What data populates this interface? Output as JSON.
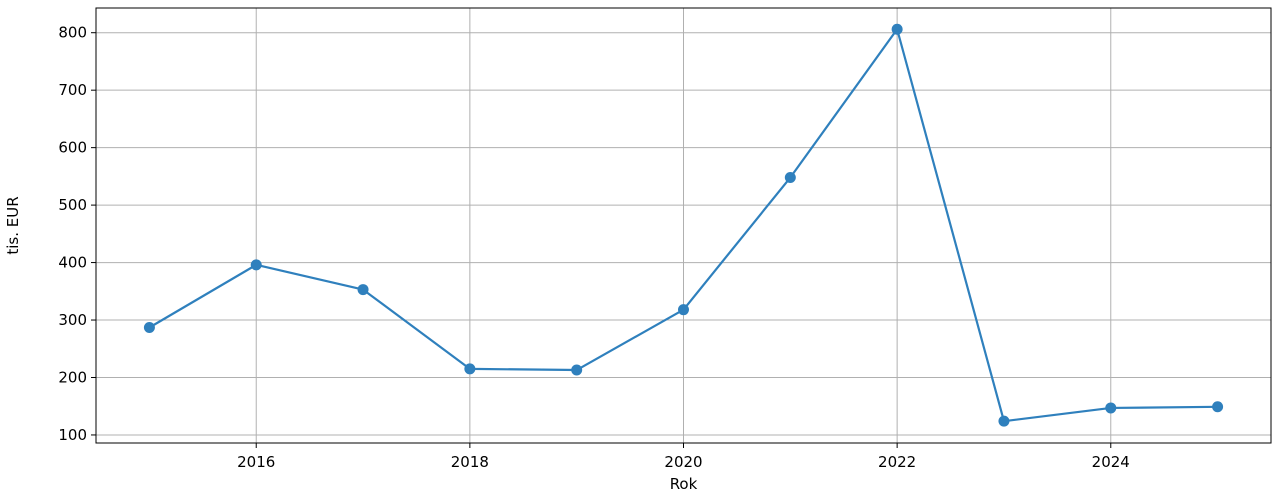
{
  "chart_data": {
    "type": "line",
    "title": "",
    "xlabel": "Rok",
    "ylabel": "tis. EUR",
    "x": [
      2015,
      2016,
      2017,
      2018,
      2019,
      2020,
      2021,
      2022,
      2023,
      2024,
      2025
    ],
    "series": [
      {
        "values": [
          287,
          396,
          353,
          215,
          213,
          318,
          548,
          806,
          124,
          147,
          149
        ],
        "color": "#2f80bd"
      }
    ],
    "xlim": [
      2014.5,
      2025.5
    ],
    "ylim": [
      86,
      843
    ],
    "xticks": [
      2016,
      2018,
      2020,
      2022,
      2024
    ],
    "xtick_labels": [
      "2016",
      "2018",
      "2020",
      "2022",
      "2024"
    ],
    "yticks": [
      100,
      200,
      300,
      400,
      500,
      600,
      700,
      800
    ],
    "ytick_labels": [
      "100",
      "200",
      "300",
      "400",
      "500",
      "600",
      "700",
      "800"
    ],
    "grid": true,
    "legend": "none"
  }
}
